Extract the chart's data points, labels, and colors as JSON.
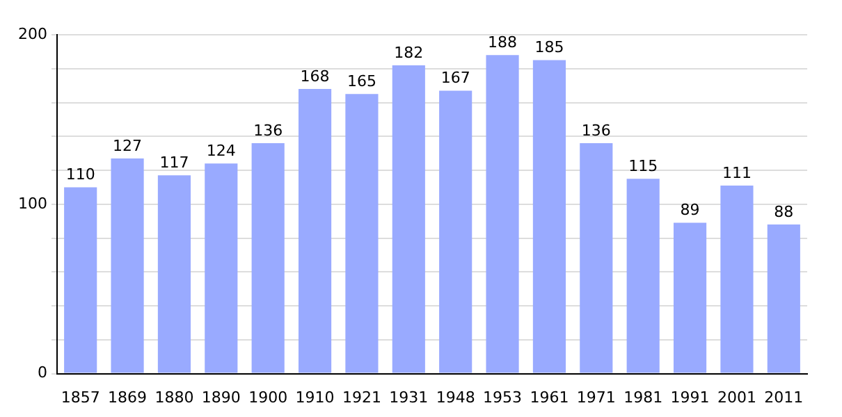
{
  "chart_data": {
    "type": "bar",
    "categories": [
      "1857",
      "1869",
      "1880",
      "1890",
      "1900",
      "1910",
      "1921",
      "1931",
      "1948",
      "1953",
      "1961",
      "1971",
      "1981",
      "1991",
      "2001",
      "2011"
    ],
    "values": [
      110,
      127,
      117,
      124,
      136,
      168,
      165,
      182,
      167,
      188,
      185,
      136,
      115,
      89,
      111,
      88
    ],
    "color": "#99aaff",
    "ylim": [
      0,
      200
    ],
    "yticks": [
      0,
      {
        "value": 20,
        "label": null
      },
      {
        "value": 40,
        "label": null
      },
      {
        "value": 60,
        "label": null
      },
      {
        "value": 80,
        "label": null
      },
      100,
      {
        "value": 120,
        "label": null
      },
      {
        "value": 140,
        "label": null
      },
      {
        "value": 160,
        "label": null
      },
      {
        "value": 180,
        "label": null
      },
      200
    ],
    "grid": "y",
    "data_labels": true
  }
}
